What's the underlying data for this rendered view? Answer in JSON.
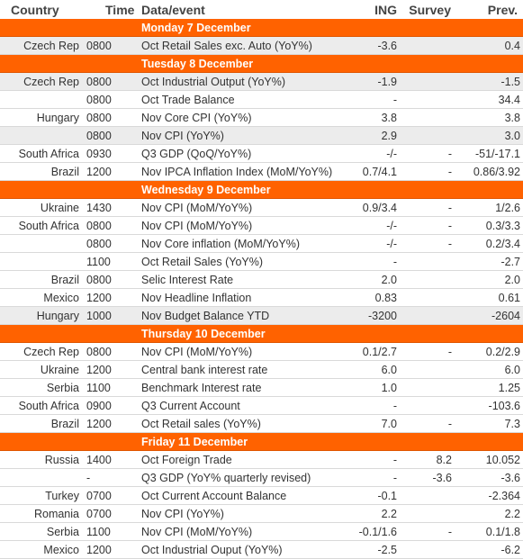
{
  "header": [
    "Country",
    "Time",
    "Data/event",
    "ING",
    "Survey",
    "Prev."
  ],
  "days": [
    {
      "title": "Monday 7 December",
      "rows": [
        [
          "Czech Rep",
          "0800",
          "Oct Retail Sales exc. Auto (YoY%)",
          "-3.6",
          null,
          "0.4"
        ]
      ]
    },
    {
      "title": "Tuesday 8 December",
      "rows": [
        [
          "Czech Rep",
          "0800",
          "Oct Industrial Output (YoY%)",
          "-1.9",
          null,
          "-1.5"
        ],
        [
          null,
          "0800",
          "Oct Trade Balance",
          "-",
          null,
          "34.4"
        ],
        [
          "Hungary",
          "0800",
          "Nov Core CPI (YoY%)",
          "3.8",
          null,
          "3.8"
        ],
        [
          null,
          "0800",
          "Nov CPI (YoY%)",
          "2.9",
          null,
          "3.0"
        ],
        [
          "South Africa",
          "0930",
          "Q3 GDP (QoQ/YoY%)",
          "-/-",
          "-",
          "-51/-17.1"
        ],
        [
          "Brazil",
          "1200",
          "Nov IPCA Inflation Index (MoM/YoY%)",
          "0.7/4.1",
          "-",
          "0.86/3.92"
        ]
      ]
    },
    {
      "title": "Wednesday 9 December",
      "rows": [
        [
          "Ukraine",
          "1430",
          "Nov CPI (MoM/YoY%)",
          "0.9/3.4",
          "-",
          "1/2.6"
        ],
        [
          "South Africa",
          "0800",
          "Nov CPI (MoM/YoY%)",
          "-/-",
          "-",
          "0.3/3.3"
        ],
        [
          null,
          "0800",
          "Nov Core inflation (MoM/YoY%)",
          "-/-",
          "-",
          "0.2/3.4"
        ],
        [
          null,
          "1100",
          "Oct Retail Sales (YoY%)",
          "-",
          null,
          "-2.7"
        ],
        [
          "Brazil",
          "0800",
          "Selic Interest Rate",
          "2.0",
          null,
          "2.0"
        ],
        [
          "Mexico",
          "1200",
          "Nov Headline Inflation",
          "0.83",
          null,
          "0.61"
        ],
        [
          "Hungary",
          "1000",
          "Nov Budget Balance YTD",
          "-3200",
          null,
          "-2604"
        ]
      ]
    },
    {
      "title": "Thursday 10 December",
      "rows": [
        [
          "Czech Rep",
          "0800",
          "Nov CPI (MoM/YoY%)",
          "0.1/2.7",
          "-",
          "0.2/2.9"
        ],
        [
          "Ukraine",
          "1200",
          "Central bank interest rate",
          "6.0",
          null,
          "6.0"
        ],
        [
          "Serbia",
          "1100",
          "Benchmark Interest rate",
          "1.0",
          null,
          "1.25"
        ],
        [
          "South Africa",
          "0900",
          "Q3 Current Account",
          "-",
          null,
          "-103.6"
        ],
        [
          "Brazil",
          "1200",
          "Oct Retail sales (YoY%)",
          "7.0",
          "-",
          "7.3"
        ]
      ]
    },
    {
      "title": "Friday 11 December",
      "rows": [
        [
          "Russia",
          "1400",
          "Oct Foreign Trade",
          "-",
          "8.2",
          "10.052"
        ],
        [
          null,
          "-",
          "Q3 GDP (YoY% quarterly revised)",
          "-",
          "-3.6",
          "-3.6"
        ],
        [
          "Turkey",
          "0700",
          "Oct Current Account Balance",
          "-0.1",
          null,
          "-2.364"
        ],
        [
          "Romania",
          "0700",
          "Nov CPI (YoY%)",
          "2.2",
          null,
          "2.2"
        ],
        [
          "Serbia",
          "1100",
          "Nov CPI (MoM/YoY%)",
          "-0.1/1.6",
          "-",
          "0.1/1.8"
        ],
        [
          "Mexico",
          "1200",
          "Oct Industrial Ouput (YoY%)",
          "-2.5",
          null,
          "-6.2"
        ]
      ]
    }
  ]
}
